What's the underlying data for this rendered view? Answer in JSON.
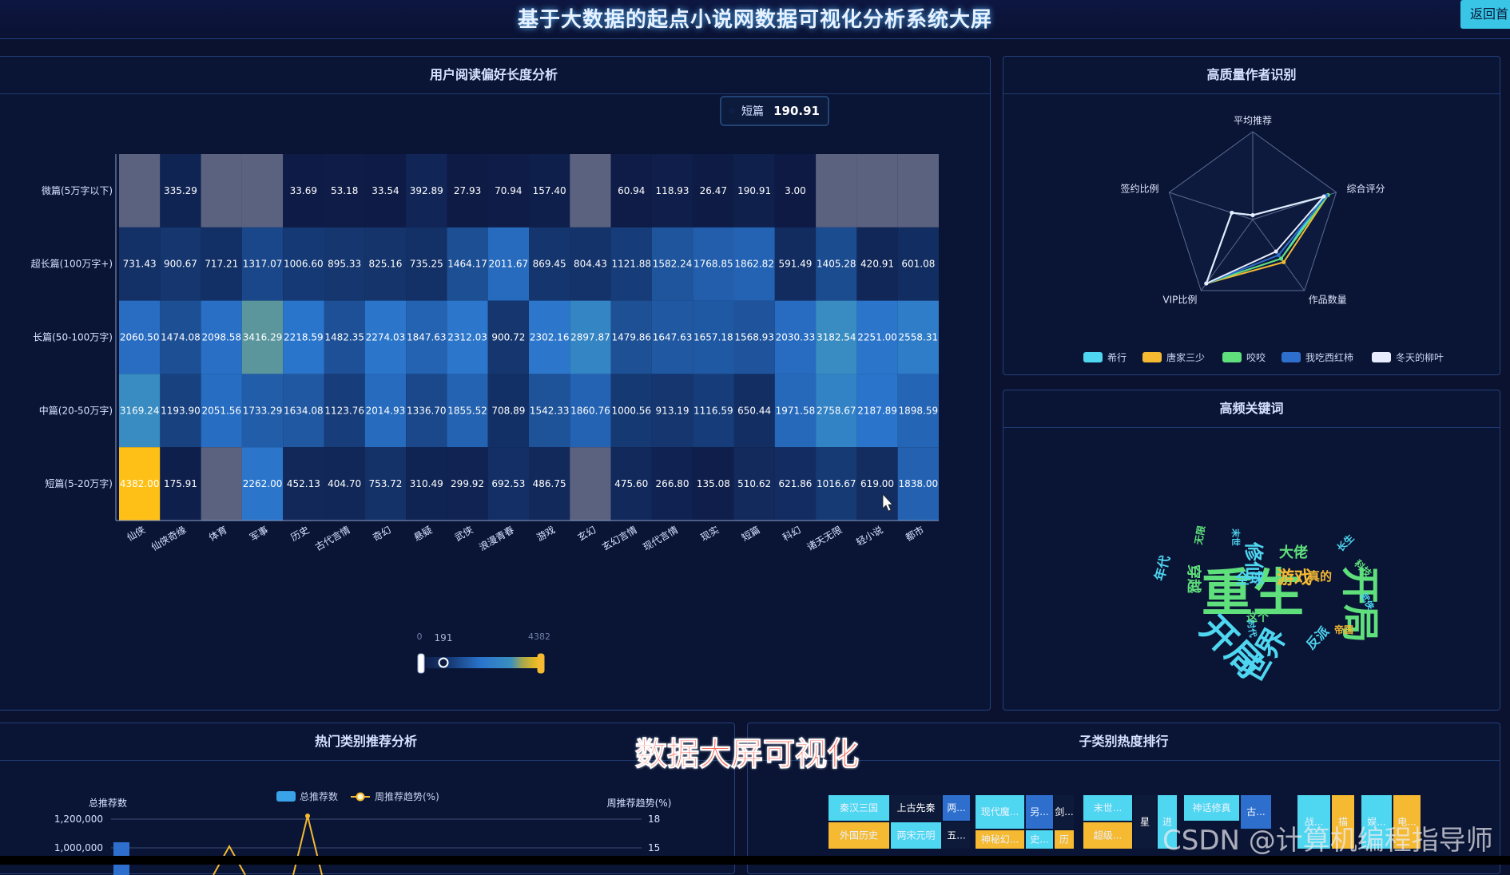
{
  "header": {
    "title": "基于大数据的起点小说网数据可视化分析系统大屏",
    "back_label": "返回首"
  },
  "panels": {
    "heat_title": "用户阅读偏好长度分析",
    "author_title": "高质量作者识别",
    "kw_title": "高频关键词",
    "rec_title": "热门类别推荐分析",
    "sub_title": "子类别热度排行"
  },
  "overlay_text": "数据大屏可视化",
  "watermark": "CSDN @计算机编程指导师",
  "tooltip": {
    "label": "短篇",
    "value": "190.91"
  },
  "visual_map": {
    "min": "0",
    "max": "4382",
    "current": "191"
  },
  "chart_data": [
    {
      "type": "heatmap",
      "title": "用户阅读偏好长度分析",
      "x": [
        "仙侠",
        "仙侠奇缘",
        "体育",
        "军事",
        "历史",
        "古代言情",
        "奇幻",
        "悬疑",
        "武侠",
        "浪漫青春",
        "游戏",
        "玄幻",
        "玄幻言情",
        "现代言情",
        "现实",
        "短篇",
        "科幻",
        "诸天无限",
        "轻小说",
        "都市"
      ],
      "y": [
        "微篇(5万字以下)",
        "超长篇(100万字+)",
        "长篇(50-100万字)",
        "中篇(20-50万字)",
        "短篇(5-20万字)"
      ],
      "values": [
        [
          null,
          335.29,
          null,
          null,
          33.69,
          53.18,
          33.54,
          392.89,
          27.93,
          70.94,
          157.4,
          null,
          60.94,
          118.93,
          26.47,
          190.91,
          3.0,
          null,
          null,
          null
        ],
        [
          731.43,
          900.67,
          717.21,
          1317.07,
          1006.6,
          895.33,
          825.16,
          735.25,
          1464.17,
          2011.67,
          869.45,
          804.43,
          1121.88,
          1582.24,
          1768.85,
          1862.82,
          591.49,
          1405.28,
          420.91,
          601.08
        ],
        [
          2060.5,
          1474.08,
          2098.58,
          3416.29,
          2218.59,
          1482.35,
          2274.03,
          1847.63,
          2312.03,
          900.72,
          2302.16,
          2897.87,
          1479.86,
          1647.63,
          1657.18,
          1568.93,
          2030.33,
          3182.54,
          2251.0,
          2558.31
        ],
        [
          3169.24,
          1193.9,
          2051.56,
          1733.29,
          1634.08,
          1123.76,
          2014.93,
          1336.7,
          1855.52,
          708.89,
          1542.33,
          1860.76,
          1000.56,
          913.19,
          1116.59,
          650.44,
          1971.58,
          2758.67,
          2187.89,
          1898.59
        ],
        [
          4382.0,
          175.91,
          null,
          2262.0,
          452.13,
          404.7,
          753.72,
          310.49,
          299.92,
          692.53,
          486.75,
          null,
          475.6,
          266.8,
          135.08,
          510.62,
          621.86,
          1016.67,
          619.0,
          1838.0
        ]
      ],
      "range": [
        0,
        4382
      ]
    },
    {
      "type": "radar",
      "title": "高质量作者识别",
      "indicators": [
        "平均推荐",
        "综合评分",
        "作品数量",
        "VIP比例",
        "签约比例"
      ],
      "series": [
        {
          "name": "希行",
          "values": [
            0.05,
            0.85,
            0.55,
            0.9,
            0.25
          ],
          "color": "#4fd6f0"
        },
        {
          "name": "唐家三少",
          "values": [
            0.05,
            0.9,
            0.6,
            0.9,
            0.25
          ],
          "color": "#f5b932"
        },
        {
          "name": "咬咬",
          "values": [
            0.05,
            0.9,
            0.55,
            0.9,
            0.25
          ],
          "color": "#5fe07c"
        },
        {
          "name": "我吃西红柿",
          "values": [
            0.05,
            0.88,
            0.5,
            0.9,
            0.25
          ],
          "color": "#2e6fce"
        },
        {
          "name": "冬天的柳叶",
          "values": [
            0.05,
            0.85,
            0.45,
            0.9,
            0.25
          ],
          "color": "#e7ecff"
        }
      ],
      "legend": "bottom"
    },
    {
      "type": "bar",
      "title": "热门类别推荐分析",
      "series": [
        {
          "name": "总推荐数"
        },
        {
          "name": "周推荐趋势(%)"
        }
      ],
      "y_left_label": "总推荐数",
      "y_right_label": "周推荐趋势(%)",
      "y_left_ticks": [
        "1,200,000",
        "1,000,000"
      ],
      "y_right_ticks": [
        "18",
        "15"
      ]
    }
  ],
  "wordcloud": [
    {
      "text": "重生",
      "color": "#5fe07c",
      "size": 64
    },
    {
      "text": "开局",
      "color": "#5fe07c",
      "size": 48
    },
    {
      "text": "开局",
      "color": "#4fd6f0",
      "size": 44
    },
    {
      "text": "世界",
      "color": "#4fd6f0",
      "size": 36
    },
    {
      "text": "游戏",
      "color": "#f5b932",
      "size": 22
    },
    {
      "text": "大佬",
      "color": "#5fe07c",
      "size": 18
    },
    {
      "text": "全球",
      "color": "#4fd6f0",
      "size": 18
    },
    {
      "text": "修仙",
      "color": "#4fd6f0",
      "size": 24
    },
    {
      "text": "穿越",
      "color": "#5fe07c",
      "size": 18
    },
    {
      "text": "年代",
      "color": "#4fd6f0",
      "size": 16
    },
    {
      "text": "真的",
      "color": "#f5b932",
      "size": 15
    },
    {
      "text": "这个",
      "color": "#5fe07c",
      "size": 14
    },
    {
      "text": "反派",
      "color": "#4fd6f0",
      "size": 16
    },
    {
      "text": "帝国",
      "color": "#f5b932",
      "size": 12
    },
    {
      "text": "无限",
      "color": "#5fe07c",
      "size": 12
    },
    {
      "text": "长生",
      "color": "#4fd6f0",
      "size": 12
    },
    {
      "text": "科技",
      "color": "#5fe07c",
      "size": 12
    },
    {
      "text": "末世",
      "color": "#4fd6f0",
      "size": 11
    },
    {
      "text": "武侠",
      "color": "#4fd6f0",
      "size": 11
    },
    {
      "text": "时代",
      "color": "#4fd6f0",
      "size": 11
    }
  ],
  "treemap": [
    {
      "text": "秦汉三国",
      "color": "#4fd6f0"
    },
    {
      "text": "外国历史",
      "color": "#f5b932"
    },
    {
      "text": "上古先秦",
      "color": "#0e1a3a"
    },
    {
      "text": "两宋元明",
      "color": "#4fd6f0"
    },
    {
      "text": "两...",
      "color": "#2e6fce"
    },
    {
      "text": "五...",
      "color": "#0e1a3a"
    },
    {
      "text": "现代魔...",
      "color": "#4fd6f0"
    },
    {
      "text": "神秘幻...",
      "color": "#f5b932"
    },
    {
      "text": "另...",
      "color": "#2e6fce"
    },
    {
      "text": "史...",
      "color": "#4fd6f0"
    },
    {
      "text": "剑...",
      "color": "#0e1a3a"
    },
    {
      "text": "历",
      "color": "#f5b932"
    },
    {
      "text": "末世...",
      "color": "#4fd6f0"
    },
    {
      "text": "超级...",
      "color": "#f5b932"
    },
    {
      "text": "星",
      "color": "#0e1a3a"
    },
    {
      "text": "进",
      "color": "#4fd6f0"
    },
    {
      "text": "神话修真",
      "color": "#4fd6f0"
    },
    {
      "text": "古...",
      "color": "#2e6fce"
    },
    {
      "text": "战...",
      "color": "#4fd6f0"
    },
    {
      "text": "描",
      "color": "#f5b932"
    },
    {
      "text": "娱...",
      "color": "#4fd6f0"
    },
    {
      "text": "电...",
      "color": "#f5b932"
    }
  ]
}
